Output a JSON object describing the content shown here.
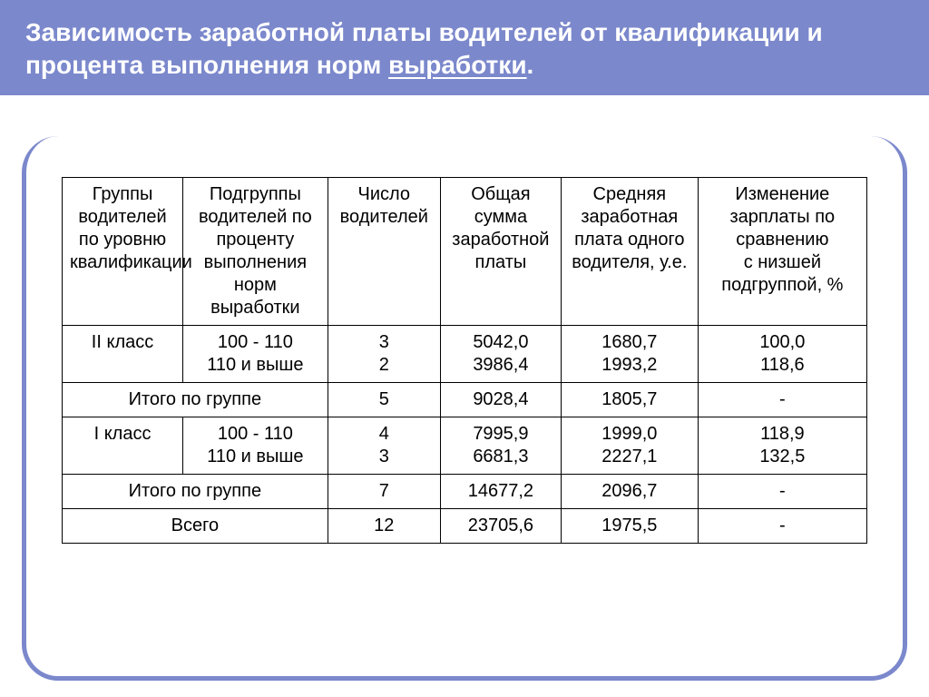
{
  "colors": {
    "header_bg": "#7b88cc",
    "header_text": "#ffffff",
    "border": "#000000",
    "page_bg": "#ffffff"
  },
  "title": {
    "line1": "Зависимость заработной платы водителей от квалификации и процента выполнения норм ",
    "underlined": "выработки",
    "period": "."
  },
  "table": {
    "headers": [
      "Группы водителей по уровню квалификации",
      "Подгруппы водителей по проценту выполнения\nнорм выработки",
      "Число водителей",
      "Общая сумма заработной\nплаты",
      "Средняя заработная\nплата одного водителя, у.е.",
      "Изменение зарплаты по сравнению\nс низшей подгруппой, %"
    ],
    "rows": [
      {
        "c0": "II класс",
        "c1": "100 - 110\n110 и выше",
        "c2": "3\n2",
        "c3": "5042,0\n3986,4",
        "c4": "1680,7\n1993,2",
        "c5": "100,0\n118,6"
      },
      {
        "span01": "Итого по группе",
        "c2": "5",
        "c3": "9028,4",
        "c4": "1805,7",
        "c5": "-"
      },
      {
        "c0": "I класс",
        "c1": "100 - 110\n110 и выше",
        "c2": "4\n3",
        "c3": "7995,9\n6681,3",
        "c4": "1999,0\n2227,1",
        "c5": "118,9\n132,5"
      },
      {
        "span01": "Итого по группе",
        "c2": "7",
        "c3": "14677,2",
        "c4": "2096,7",
        "c5": "-"
      },
      {
        "span01": "Всего",
        "c2": "12",
        "c3": "23705,6",
        "c4": "1975,5",
        "c5": "-"
      }
    ]
  }
}
